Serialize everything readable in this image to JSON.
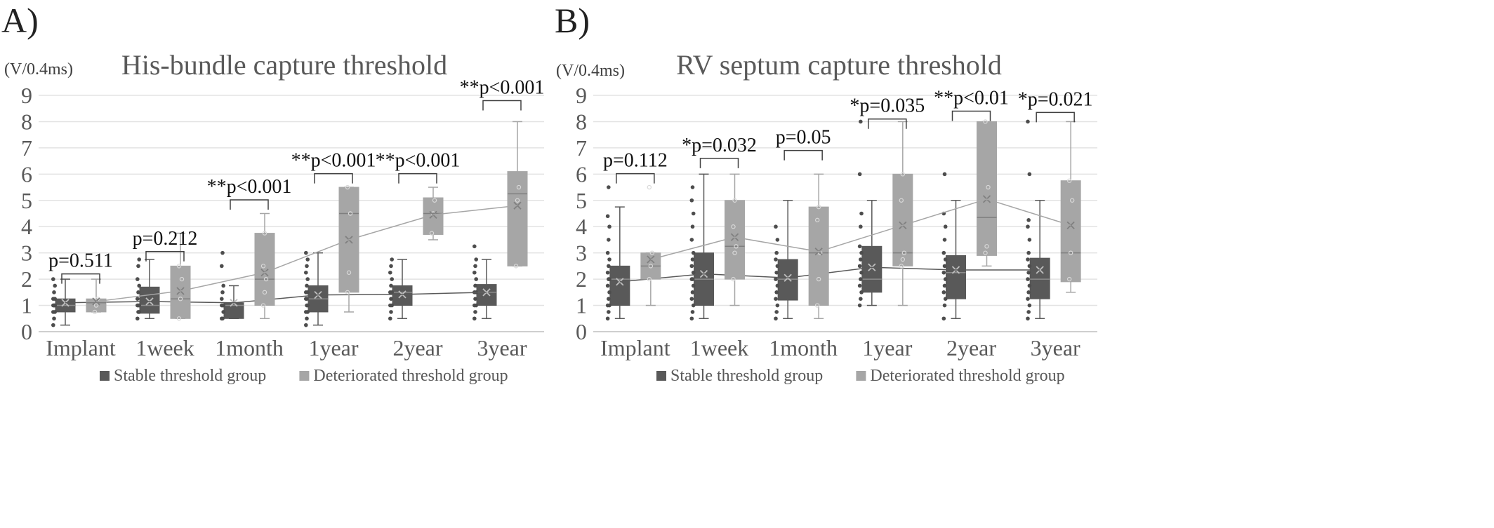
{
  "panels": [
    {
      "letter": "A)"
    },
    {
      "letter": "B)"
    }
  ],
  "chart_data": [
    {
      "type": "box",
      "panel": "A)",
      "title": "His-bundle capture threshold",
      "ylabel": "(V/0.4ms)",
      "ylim": [
        0,
        9
      ],
      "yticks": [
        0,
        1,
        2,
        3,
        4,
        5,
        6,
        7,
        8,
        9
      ],
      "grid": true,
      "legend_position": "bottom",
      "categories": [
        "Implant",
        "1week",
        "1month",
        "1year",
        "2year",
        "3year"
      ],
      "pvalues": [
        "p=0.511",
        "p=0.212",
        "**p<0.001",
        "**p<0.001",
        "**p<0.001",
        "**p<0.001"
      ],
      "series": [
        {
          "name": "Stable threshold group",
          "color": "#595959",
          "boxes": [
            {
              "min": 0.25,
              "q1": 0.75,
              "median": 1.0,
              "q3": 1.25,
              "max": 2.0,
              "mean": 1.1,
              "points": [
                0.25,
                0.5,
                0.75,
                0.75,
                1.0,
                1.0,
                1.0,
                1.0,
                1.25,
                1.25,
                1.5,
                1.75,
                2.0
              ]
            },
            {
              "min": 0.5,
              "q1": 0.7,
              "median": 1.0,
              "q3": 1.7,
              "max": 2.75,
              "mean": 1.15,
              "points": [
                0.5,
                0.75,
                0.75,
                1.0,
                1.0,
                1.0,
                1.25,
                1.5,
                1.75,
                2.0,
                2.5,
                2.75
              ]
            },
            {
              "min": 0.5,
              "q1": 0.5,
              "median": 1.0,
              "q3": 1.1,
              "max": 1.75,
              "mean": 1.1,
              "points": [
                0.5,
                0.5,
                0.75,
                1.0,
                1.0,
                1.0,
                1.25,
                1.5,
                1.75,
                2.5,
                3.0
              ]
            },
            {
              "min": 0.25,
              "q1": 0.75,
              "median": 1.25,
              "q3": 1.75,
              "max": 3.0,
              "mean": 1.4,
              "points": [
                0.25,
                0.5,
                0.75,
                0.75,
                1.0,
                1.0,
                1.25,
                1.25,
                1.5,
                1.5,
                1.75,
                2.0,
                2.25,
                2.5,
                2.75,
                3.0
              ]
            },
            {
              "min": 0.5,
              "q1": 1.0,
              "median": 1.5,
              "q3": 1.75,
              "max": 2.75,
              "mean": 1.42,
              "points": [
                0.5,
                0.75,
                1.0,
                1.0,
                1.25,
                1.5,
                1.5,
                1.75,
                2.0,
                2.25,
                2.5,
                2.75
              ]
            },
            {
              "min": 0.5,
              "q1": 1.0,
              "median": 1.5,
              "q3": 1.8,
              "max": 2.75,
              "mean": 1.5,
              "points": [
                0.5,
                0.75,
                1.0,
                1.0,
                1.25,
                1.5,
                1.5,
                1.75,
                2.0,
                2.25,
                2.5,
                2.75,
                3.25
              ]
            }
          ]
        },
        {
          "name": "Deteriorated threshold group",
          "color": "#a6a6a6",
          "boxes": [
            {
              "min": 0.75,
              "q1": 0.75,
              "median": 1.1,
              "q3": 1.25,
              "max": 2.0,
              "mean": 1.15,
              "points": [
                0.75,
                1.0,
                1.25
              ]
            },
            {
              "min": 0.5,
              "q1": 0.5,
              "median": 1.25,
              "q3": 2.5,
              "max": 3.75,
              "mean": 1.55,
              "points": [
                0.5,
                1.25,
                2.0,
                2.5
              ]
            },
            {
              "min": 0.5,
              "q1": 1.0,
              "median": 2.0,
              "q3": 3.75,
              "max": 4.5,
              "mean": 2.25,
              "points": [
                1.0,
                1.5,
                2.0,
                2.5,
                3.75
              ]
            },
            {
              "min": 0.75,
              "q1": 1.5,
              "median": 4.5,
              "q3": 5.5,
              "max": 5.5,
              "mean": 3.5,
              "points": [
                1.5,
                2.25,
                4.5,
                5.5
              ]
            },
            {
              "min": 3.5,
              "q1": 3.7,
              "median": 4.5,
              "q3": 5.1,
              "max": 5.5,
              "mean": 4.45,
              "points": [
                3.75,
                4.5,
                5.0
              ]
            },
            {
              "min": 2.5,
              "q1": 2.5,
              "median": 5.25,
              "q3": 6.1,
              "max": 8.0,
              "mean": 4.8,
              "points": [
                2.5,
                5.0,
                5.5
              ]
            }
          ]
        }
      ]
    },
    {
      "type": "box",
      "panel": "B)",
      "title": "RV septum capture threshold",
      "ylabel": "(V/0.4ms)",
      "ylim": [
        0,
        9
      ],
      "yticks": [
        0,
        1,
        2,
        3,
        4,
        5,
        6,
        7,
        8,
        9
      ],
      "grid": true,
      "legend_position": "bottom",
      "categories": [
        "Implant",
        "1week",
        "1month",
        "1year",
        "2year",
        "3year"
      ],
      "pvalues": [
        "p=0.112",
        "*p=0.032",
        "p=0.05",
        "*p=0.035",
        "**p<0.01",
        "*p=0.021"
      ],
      "series": [
        {
          "name": "Stable threshold group",
          "color": "#595959",
          "boxes": [
            {
              "min": 0.5,
              "q1": 1.0,
              "median": 2.0,
              "q3": 2.5,
              "max": 4.75,
              "mean": 1.9,
              "points": [
                0.5,
                0.75,
                1.0,
                1.0,
                1.25,
                1.5,
                1.75,
                2.0,
                2.0,
                2.25,
                2.5,
                2.75,
                3.0,
                3.5,
                4.0,
                4.4,
                5.5
              ]
            },
            {
              "min": 0.5,
              "q1": 1.0,
              "median": 2.0,
              "q3": 3.0,
              "max": 6.0,
              "mean": 2.2,
              "points": [
                0.5,
                0.75,
                1.0,
                1.25,
                1.5,
                1.75,
                2.0,
                2.0,
                2.25,
                2.5,
                2.75,
                3.0,
                3.5,
                4.0,
                4.5,
                5.0,
                5.5
              ]
            },
            {
              "min": 0.5,
              "q1": 1.2,
              "median": 2.0,
              "q3": 2.75,
              "max": 5.0,
              "mean": 2.05,
              "points": [
                0.5,
                0.75,
                1.0,
                1.25,
                1.5,
                1.75,
                2.0,
                2.25,
                2.5,
                2.75,
                3.0,
                3.5,
                4.0
              ]
            },
            {
              "min": 1.0,
              "q1": 1.5,
              "median": 2.0,
              "q3": 3.25,
              "max": 5.0,
              "mean": 2.45,
              "points": [
                1.0,
                1.25,
                1.5,
                1.75,
                2.0,
                2.25,
                2.5,
                2.75,
                3.0,
                3.25,
                4.0,
                4.5,
                6.0,
                8.0
              ]
            },
            {
              "min": 0.5,
              "q1": 1.25,
              "median": 2.25,
              "q3": 2.9,
              "max": 5.0,
              "mean": 2.35,
              "points": [
                0.5,
                1.0,
                1.25,
                1.5,
                1.75,
                2.0,
                2.25,
                2.5,
                2.75,
                3.0,
                3.5,
                4.0,
                4.5,
                6.0
              ]
            },
            {
              "min": 0.5,
              "q1": 1.25,
              "median": 2.0,
              "q3": 2.8,
              "max": 5.0,
              "mean": 2.35,
              "points": [
                0.5,
                0.75,
                1.0,
                1.25,
                1.5,
                1.75,
                2.0,
                2.25,
                2.5,
                2.75,
                3.0,
                3.5,
                4.0,
                4.25,
                6.0,
                8.0
              ]
            }
          ]
        },
        {
          "name": "Deteriorated threshold group",
          "color": "#a6a6a6",
          "boxes": [
            {
              "min": 1.0,
              "q1": 2.0,
              "median": 2.5,
              "q3": 3.0,
              "max": 3.0,
              "mean": 2.75,
              "points": [
                2.0,
                2.5,
                3.0,
                5.5
              ]
            },
            {
              "min": 1.0,
              "q1": 2.0,
              "median": 3.25,
              "q3": 5.0,
              "max": 6.0,
              "mean": 3.6,
              "points": [
                2.0,
                3.0,
                3.25,
                4.0,
                5.0
              ]
            },
            {
              "min": 0.5,
              "q1": 1.0,
              "median": 3.0,
              "q3": 4.75,
              "max": 6.0,
              "mean": 3.05,
              "points": [
                1.0,
                2.0,
                3.0,
                4.25,
                4.75
              ]
            },
            {
              "min": 1.0,
              "q1": 2.5,
              "median": 3.0,
              "q3": 6.0,
              "max": 8.0,
              "mean": 4.05,
              "points": [
                2.5,
                2.75,
                3.0,
                5.0,
                6.0
              ]
            },
            {
              "min": 2.5,
              "q1": 2.9,
              "median": 4.35,
              "q3": 8.0,
              "max": 8.0,
              "mean": 5.05,
              "points": [
                3.0,
                3.25,
                5.5,
                8.0
              ]
            },
            {
              "min": 1.5,
              "q1": 1.9,
              "median": 3.0,
              "q3": 5.75,
              "max": 8.0,
              "mean": 4.05,
              "points": [
                2.0,
                3.0,
                5.0,
                5.75
              ]
            }
          ]
        }
      ]
    }
  ]
}
